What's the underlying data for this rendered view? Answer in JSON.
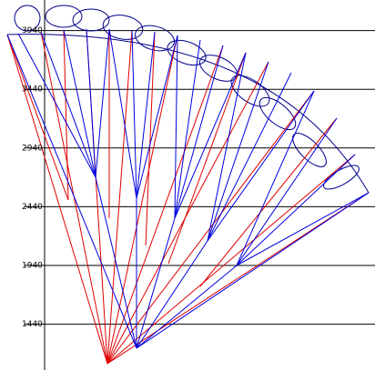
{
  "chart_data": {
    "type": "plot",
    "ylim": [
      1050,
      4200
    ],
    "yticks": [
      3940,
      3440,
      2940,
      2440,
      1940,
      1440
    ],
    "grid": true
  }
}
